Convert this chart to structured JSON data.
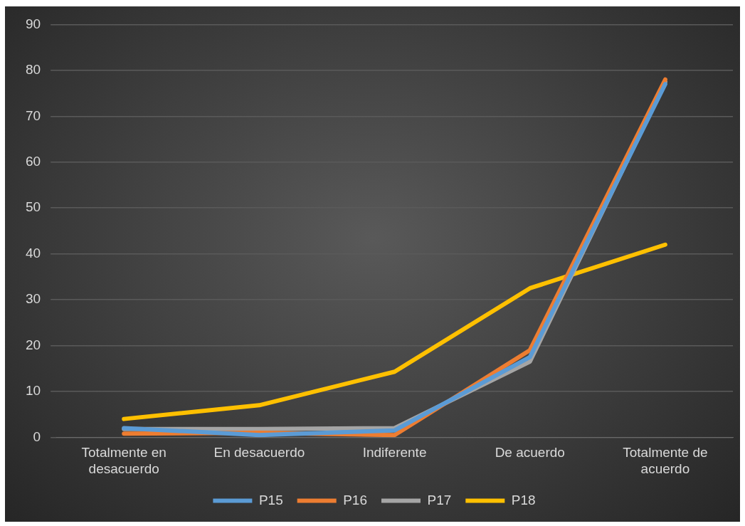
{
  "chart_data": {
    "type": "line",
    "categories": [
      "Totalmente en desacuerdo",
      "En desacuerdo",
      "Indiferente",
      "De acuerdo",
      "Totalmente de acuerdo"
    ],
    "series": [
      {
        "name": "P15",
        "color": "#5b9bd5",
        "values": [
          2,
          0.5,
          1.5,
          17.5,
          77
        ]
      },
      {
        "name": "P16",
        "color": "#ed7d31",
        "values": [
          0.8,
          1,
          0.5,
          19,
          78
        ]
      },
      {
        "name": "P17",
        "color": "#a5a5a5",
        "values": [
          1.8,
          1.8,
          2,
          16.5,
          77.5
        ]
      },
      {
        "name": "P18",
        "color": "#ffc000",
        "values": [
          4,
          7,
          14.3,
          32.5,
          42
        ]
      }
    ],
    "ylim": [
      0,
      90
    ],
    "yticks": [
      0,
      10,
      20,
      30,
      40,
      50,
      60,
      70,
      80,
      90
    ],
    "grid": "y",
    "legend": "bottom",
    "marker": "none",
    "line_style": "solid"
  }
}
